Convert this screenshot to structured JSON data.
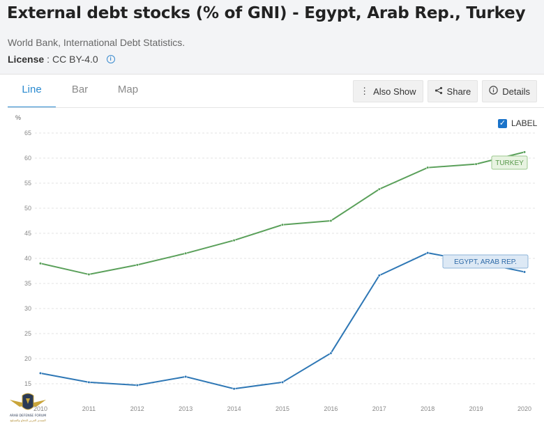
{
  "header": {
    "title": "External debt stocks (% of GNI) - Egypt, Arab Rep., Turkey",
    "source": "World Bank, International Debt Statistics.",
    "license_label": "License",
    "license_sep": " : ",
    "license_value": "CC BY-4.0"
  },
  "tabs": [
    "Line",
    "Bar",
    "Map"
  ],
  "active_tab": "Line",
  "actions": {
    "also_show": "Also Show",
    "share": "Share",
    "details": "Details"
  },
  "label_toggle": {
    "text": "LABEL",
    "checked": true
  },
  "chart_data": {
    "type": "line",
    "ylabel": "%",
    "ylim": [
      10,
      65
    ],
    "yticks": [
      15,
      20,
      25,
      30,
      35,
      40,
      45,
      50,
      55,
      60,
      65
    ],
    "x": [
      "2010",
      "2011",
      "2012",
      "2013",
      "2014",
      "2015",
      "2016",
      "2017",
      "2018",
      "2019",
      "2020"
    ],
    "grid": "horizontal dashed",
    "series": [
      {
        "name": "TURKEY",
        "color": "#5aa05a",
        "values": [
          39.0,
          36.8,
          38.7,
          41.0,
          43.6,
          46.7,
          47.5,
          53.8,
          58.1,
          58.8,
          61.2
        ]
      },
      {
        "name": "EGYPT, ARAB REP.",
        "color": "#2e77b5",
        "values": [
          17.1,
          15.3,
          14.7,
          16.4,
          14.0,
          15.3,
          21.1,
          36.6,
          41.1,
          39.3,
          37.3
        ]
      }
    ]
  },
  "watermark": {
    "lines": [
      "ARAB DEFENSE FORUM",
      "المنتدى العربي للدفاع والتسليح"
    ]
  }
}
